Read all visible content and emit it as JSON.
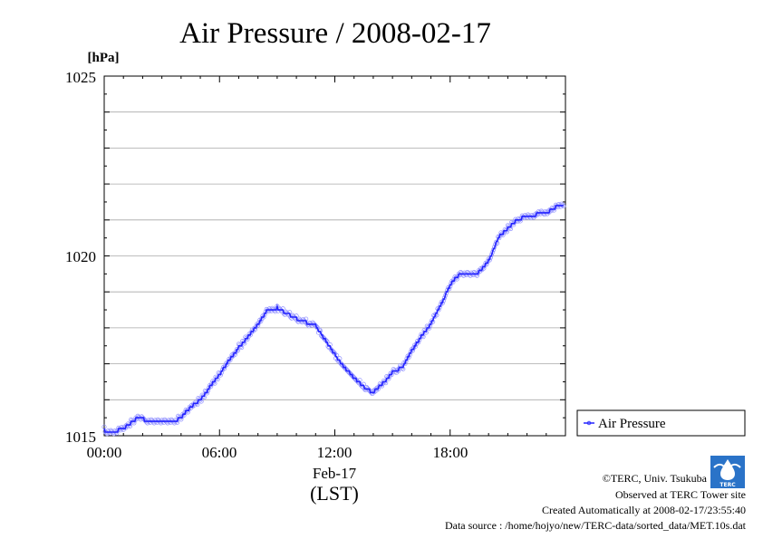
{
  "chart_data": {
    "type": "line",
    "title": "Air Pressure / 2008-02-17",
    "ylabel": "[hPa]",
    "xlabel_date": "Feb-17",
    "xlabel_unit": "(LST)",
    "ylim": [
      1015,
      1025
    ],
    "xlim": [
      "00:00",
      "24:00"
    ],
    "y_ticks": [
      "1015",
      "1020",
      "1025"
    ],
    "x_ticks": [
      "00:00",
      "06:00",
      "12:00",
      "18:00"
    ],
    "grid": true,
    "legend_position": "right",
    "series": [
      {
        "name": "Air Pressure",
        "color": "#2323ff",
        "x_hours": [
          0,
          0.5,
          1,
          1.5,
          1.8,
          2.3,
          2.5,
          3,
          3.5,
          4,
          4.5,
          5,
          5.5,
          6,
          6.5,
          7,
          7.5,
          8,
          8.5,
          9,
          9.5,
          10,
          10.5,
          11,
          11.5,
          12,
          12.5,
          13,
          13.5,
          14,
          14.5,
          15,
          15.5,
          16,
          16.5,
          17,
          17.5,
          18,
          18.5,
          19,
          19.5,
          20,
          20.5,
          21,
          21.5,
          22,
          22.5,
          23,
          23.5
        ],
        "values": [
          1015.15,
          1015.1,
          1015.2,
          1015.4,
          1015.5,
          1015.4,
          1015.35,
          1015.35,
          1015.35,
          1015.5,
          1015.8,
          1016.0,
          1016.35,
          1016.7,
          1017.1,
          1017.45,
          1017.75,
          1018.1,
          1018.5,
          1018.55,
          1018.4,
          1018.25,
          1018.15,
          1018.05,
          1017.65,
          1017.25,
          1016.9,
          1016.6,
          1016.35,
          1016.2,
          1016.45,
          1016.75,
          1016.9,
          1017.35,
          1017.75,
          1018.1,
          1018.6,
          1019.2,
          1019.5,
          1019.45,
          1019.55,
          1019.85,
          1020.5,
          1020.75,
          1021.0,
          1021.1,
          1021.15,
          1021.2,
          1021.35
        ]
      }
    ]
  },
  "credits": {
    "org": "©TERC, Univ. Tsukuba",
    "observed": "Observed at TERC Tower site",
    "created": "Created Automatically at 2008-02-17/23:55:40",
    "source": "Data source : /home/hojyo/new/TERC-data/sorted_data/MET.10s.dat",
    "logo_text": "TERC"
  }
}
